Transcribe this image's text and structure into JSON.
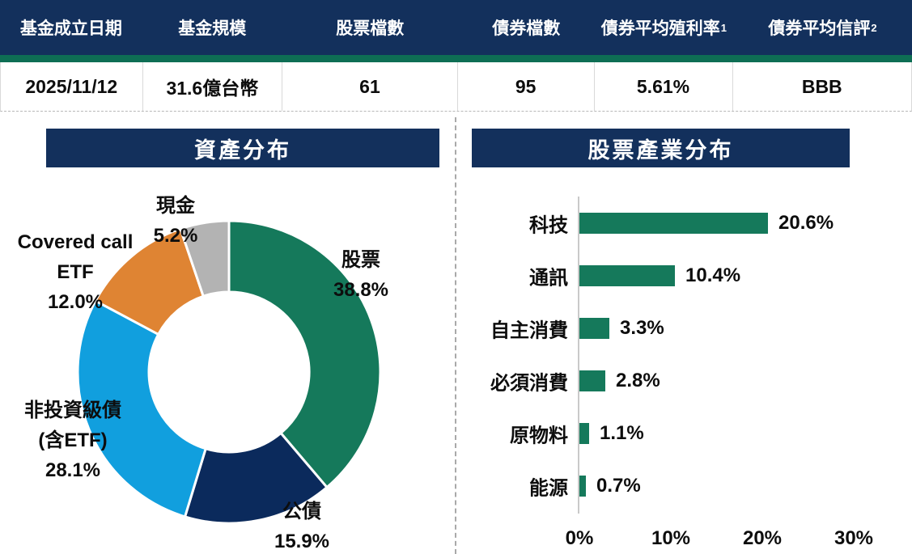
{
  "table": {
    "columns": [
      {
        "label": "基金成立日期",
        "sup": "",
        "value": "2025/11/12"
      },
      {
        "label": "基金規模",
        "sup": "",
        "value": "31.6億台幣"
      },
      {
        "label": "股票檔數",
        "sup": "",
        "value": "61"
      },
      {
        "label": "債券檔數",
        "sup": "",
        "value": "95"
      },
      {
        "label": "債券平均殖利率",
        "sup": "1",
        "value": "5.61%"
      },
      {
        "label": "債券平均信評",
        "sup": "2",
        "value": "BBB"
      }
    ]
  },
  "sections": {
    "asset_title": "資產分布",
    "industry_title": "股票產業分布"
  },
  "colors": {
    "header_navy": "#13305c",
    "accent_green": "#0e6e54",
    "pie_green": "#15795b",
    "pie_navy": "#0b2a5c",
    "pie_blue": "#119fde",
    "pie_orange": "#df8433",
    "pie_gray": "#b3b3b3",
    "bar_green": "#15795b"
  },
  "chart_data": [
    {
      "type": "pie",
      "title": "資產分布",
      "donut": true,
      "start_angle_deg": -90,
      "direction": "clockwise",
      "segments": [
        {
          "label_lines": [
            "股票"
          ],
          "value": 38.8,
          "value_label": "38.8%",
          "color": "#15795b"
        },
        {
          "label_lines": [
            "公債"
          ],
          "value": 15.9,
          "value_label": "15.9%",
          "color": "#0b2a5c"
        },
        {
          "label_lines": [
            "非投資級債",
            "(含ETF)"
          ],
          "value": 28.1,
          "value_label": "28.1%",
          "color": "#119fde"
        },
        {
          "label_lines": [
            "Covered call",
            "ETF"
          ],
          "value": 12.0,
          "value_label": "12.0%",
          "color": "#df8433"
        },
        {
          "label_lines": [
            "現金"
          ],
          "value": 5.2,
          "value_label": "5.2%",
          "color": "#b3b3b3"
        }
      ]
    },
    {
      "type": "bar",
      "title": "股票產業分布",
      "orientation": "horizontal",
      "categories": [
        "科技",
        "通訊",
        "自主消費",
        "必須消費",
        "原物料",
        "能源"
      ],
      "values": [
        20.6,
        10.4,
        3.3,
        2.8,
        1.1,
        0.7
      ],
      "value_labels": [
        "20.6%",
        "10.4%",
        "3.3%",
        "2.8%",
        "1.1%",
        "0.7%"
      ],
      "x_ticks": [
        "0%",
        "10%",
        "20%",
        "30%"
      ],
      "x_tick_values": [
        0,
        10,
        20,
        30
      ],
      "xlim": [
        0,
        30
      ],
      "bar_color": "#15795b",
      "grid": false,
      "legend": "none"
    }
  ]
}
